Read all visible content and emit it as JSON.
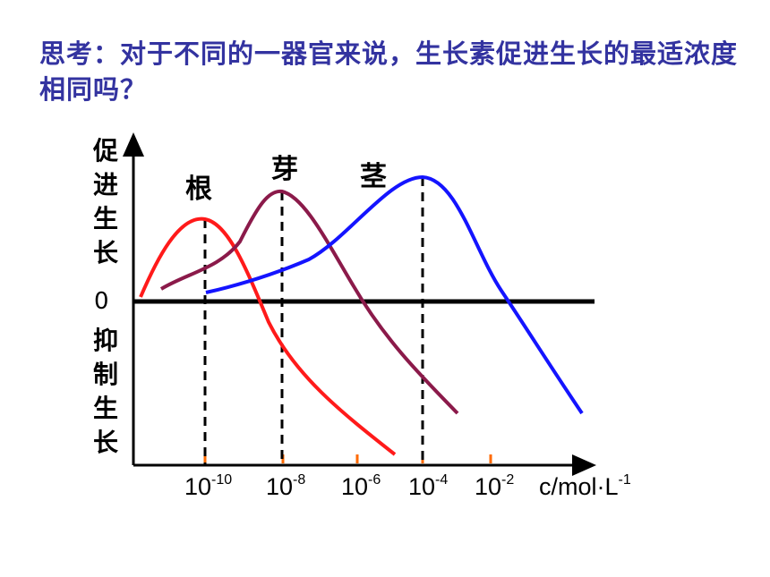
{
  "question": "思考：对于不同的一器官来说，生长素促进生长的最适浓度相同吗？",
  "chart_data": {
    "type": "line",
    "y_label_top": "促进生长",
    "y_label_bottom": "抑制生长",
    "zero_label": "0",
    "x_unit": {
      "base": "c/mol·L",
      "exp": "-1"
    },
    "x_ticks": [
      {
        "base": "10",
        "exp": "-10"
      },
      {
        "base": "10",
        "exp": "-8"
      },
      {
        "base": "10",
        "exp": "-6"
      },
      {
        "base": "10",
        "exp": "-4"
      },
      {
        "base": "10",
        "exp": "-2"
      }
    ],
    "x_tick_log_values": [
      -10,
      -8,
      -6,
      -4,
      -2
    ],
    "series": [
      {
        "name": "根",
        "color": "#ff1a1a",
        "optimum_log_c": -10
      },
      {
        "name": "芽",
        "color": "#8b1a4a",
        "optimum_log_c": -8
      },
      {
        "name": "茎",
        "color": "#1414ff",
        "optimum_log_c": -4
      }
    ],
    "tick_marker_color": "#ff6a00",
    "grid": false
  }
}
